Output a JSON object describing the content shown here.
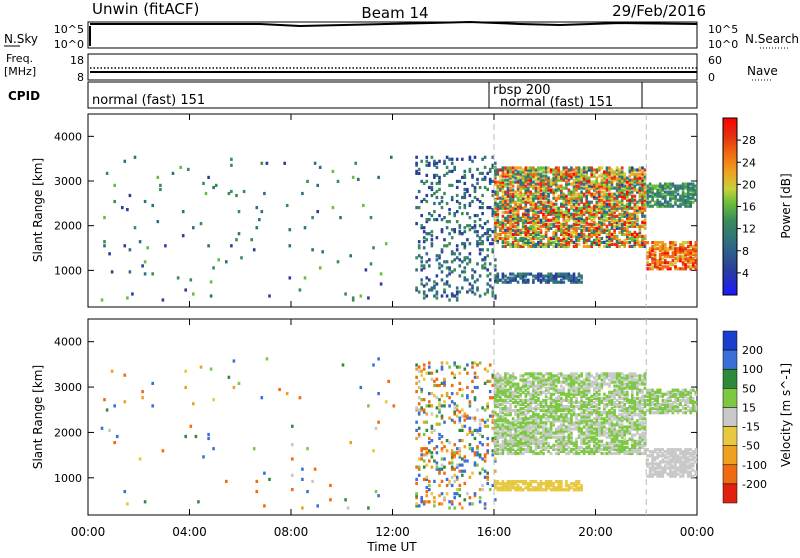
{
  "header": {
    "station": "Unwin (fitACF)",
    "beam": "Beam 14",
    "date": "29/Feb/2016"
  },
  "strips": {
    "nsky": {
      "left_label": "N.Sky",
      "left_ticks": [
        "10^5",
        "10^0"
      ],
      "right_label": "N.Search",
      "right_ticks": [
        "10^5",
        "10^0"
      ]
    },
    "freq": {
      "left_label_1": "Freq.",
      "left_label_2": "[MHz]",
      "left_ticks": [
        "18",
        "8"
      ],
      "right_label": "Nave",
      "right_ticks": [
        "60",
        "0"
      ]
    },
    "cpid": {
      "label": "CPID",
      "segments": [
        {
          "label": "normal (fast) 151"
        },
        {
          "label": "rbsp 200"
        },
        {
          "label": "normal (fast) 151"
        }
      ]
    }
  },
  "chart_data": [
    {
      "type": "heatmap",
      "title": "",
      "quantity": "Power",
      "ylabel": "Slant Range [km]",
      "xlabel": "",
      "x_range_hours": [
        0,
        24
      ],
      "ylim": [
        180,
        4500
      ],
      "y_ticks": [
        1000,
        2000,
        3000,
        4000
      ],
      "colorbar": {
        "label": "Power [dB]",
        "ticks": [
          4,
          8,
          12,
          16,
          20,
          24,
          28
        ],
        "range": [
          0,
          32
        ],
        "colors": [
          "#1a1aff",
          "#2a3d9c",
          "#2f6f7f",
          "#3a8a5a",
          "#6abf3a",
          "#c8d13a",
          "#f0a020",
          "#f06a10",
          "#e23010",
          "#ff0000"
        ]
      },
      "mode_boundaries_hours": [
        16.0,
        22.0
      ],
      "regions": [
        {
          "t": [
            0.5,
            12.0
          ],
          "r": [
            300,
            3600
          ],
          "density": "sparse",
          "power_db": [
            4,
            14
          ]
        },
        {
          "t": [
            12.9,
            16.0
          ],
          "r": [
            300,
            3500
          ],
          "density": "patchy",
          "power_db": [
            4,
            12
          ]
        },
        {
          "t": [
            16.0,
            22.0
          ],
          "r": [
            1500,
            3300
          ],
          "density": "dense",
          "power_db": [
            6,
            30
          ]
        },
        {
          "t": [
            16.0,
            19.5
          ],
          "r": [
            700,
            900
          ],
          "density": "dense",
          "power_db": [
            4,
            10
          ]
        },
        {
          "t": [
            22.0,
            24.0
          ],
          "r": [
            1000,
            1600
          ],
          "density": "dense",
          "power_db": [
            18,
            30
          ]
        },
        {
          "t": [
            22.0,
            24.0
          ],
          "r": [
            2400,
            2900
          ],
          "density": "dense",
          "power_db": [
            8,
            14
          ]
        }
      ]
    },
    {
      "type": "heatmap",
      "title": "",
      "quantity": "Velocity",
      "ylabel": "Slant Range [km]",
      "xlabel": "Time UT",
      "x_tick_labels": [
        "00:00",
        "04:00",
        "08:00",
        "12:00",
        "16:00",
        "20:00",
        "00:00"
      ],
      "x_range_hours": [
        0,
        24
      ],
      "ylim": [
        180,
        4500
      ],
      "y_ticks": [
        1000,
        2000,
        3000,
        4000
      ],
      "colorbar": {
        "label": "Velocity [m s^-1]",
        "ticks": [
          200,
          100,
          50,
          15,
          -15,
          -50,
          -100,
          -200
        ],
        "colors": [
          "#1a3fcf",
          "#3b6fd8",
          "#2e8a3a",
          "#7cc843",
          "#c8c8c8",
          "#e8c840",
          "#f0a020",
          "#f06a10",
          "#e02010"
        ]
      },
      "mode_boundaries_hours": [
        16.0,
        22.0
      ],
      "regions": [
        {
          "t": [
            0.5,
            12.0
          ],
          "r": [
            300,
            3600
          ],
          "density": "sparse",
          "velocity": [
            -200,
            200
          ]
        },
        {
          "t": [
            12.9,
            16.0
          ],
          "r": [
            300,
            3500
          ],
          "density": "patchy",
          "velocity": [
            -200,
            200
          ]
        },
        {
          "t": [
            16.0,
            22.0
          ],
          "r": [
            1500,
            3300
          ],
          "density": "dense",
          "velocity": [
            -15,
            50
          ]
        },
        {
          "t": [
            16.0,
            19.5
          ],
          "r": [
            700,
            900
          ],
          "density": "dense",
          "velocity": [
            -50,
            -15
          ]
        },
        {
          "t": [
            22.0,
            24.0
          ],
          "r": [
            1000,
            1600
          ],
          "density": "dense",
          "velocity": [
            -15,
            15
          ]
        },
        {
          "t": [
            22.0,
            24.0
          ],
          "r": [
            2400,
            2900
          ],
          "density": "dense",
          "velocity": [
            -15,
            50
          ]
        }
      ]
    }
  ]
}
